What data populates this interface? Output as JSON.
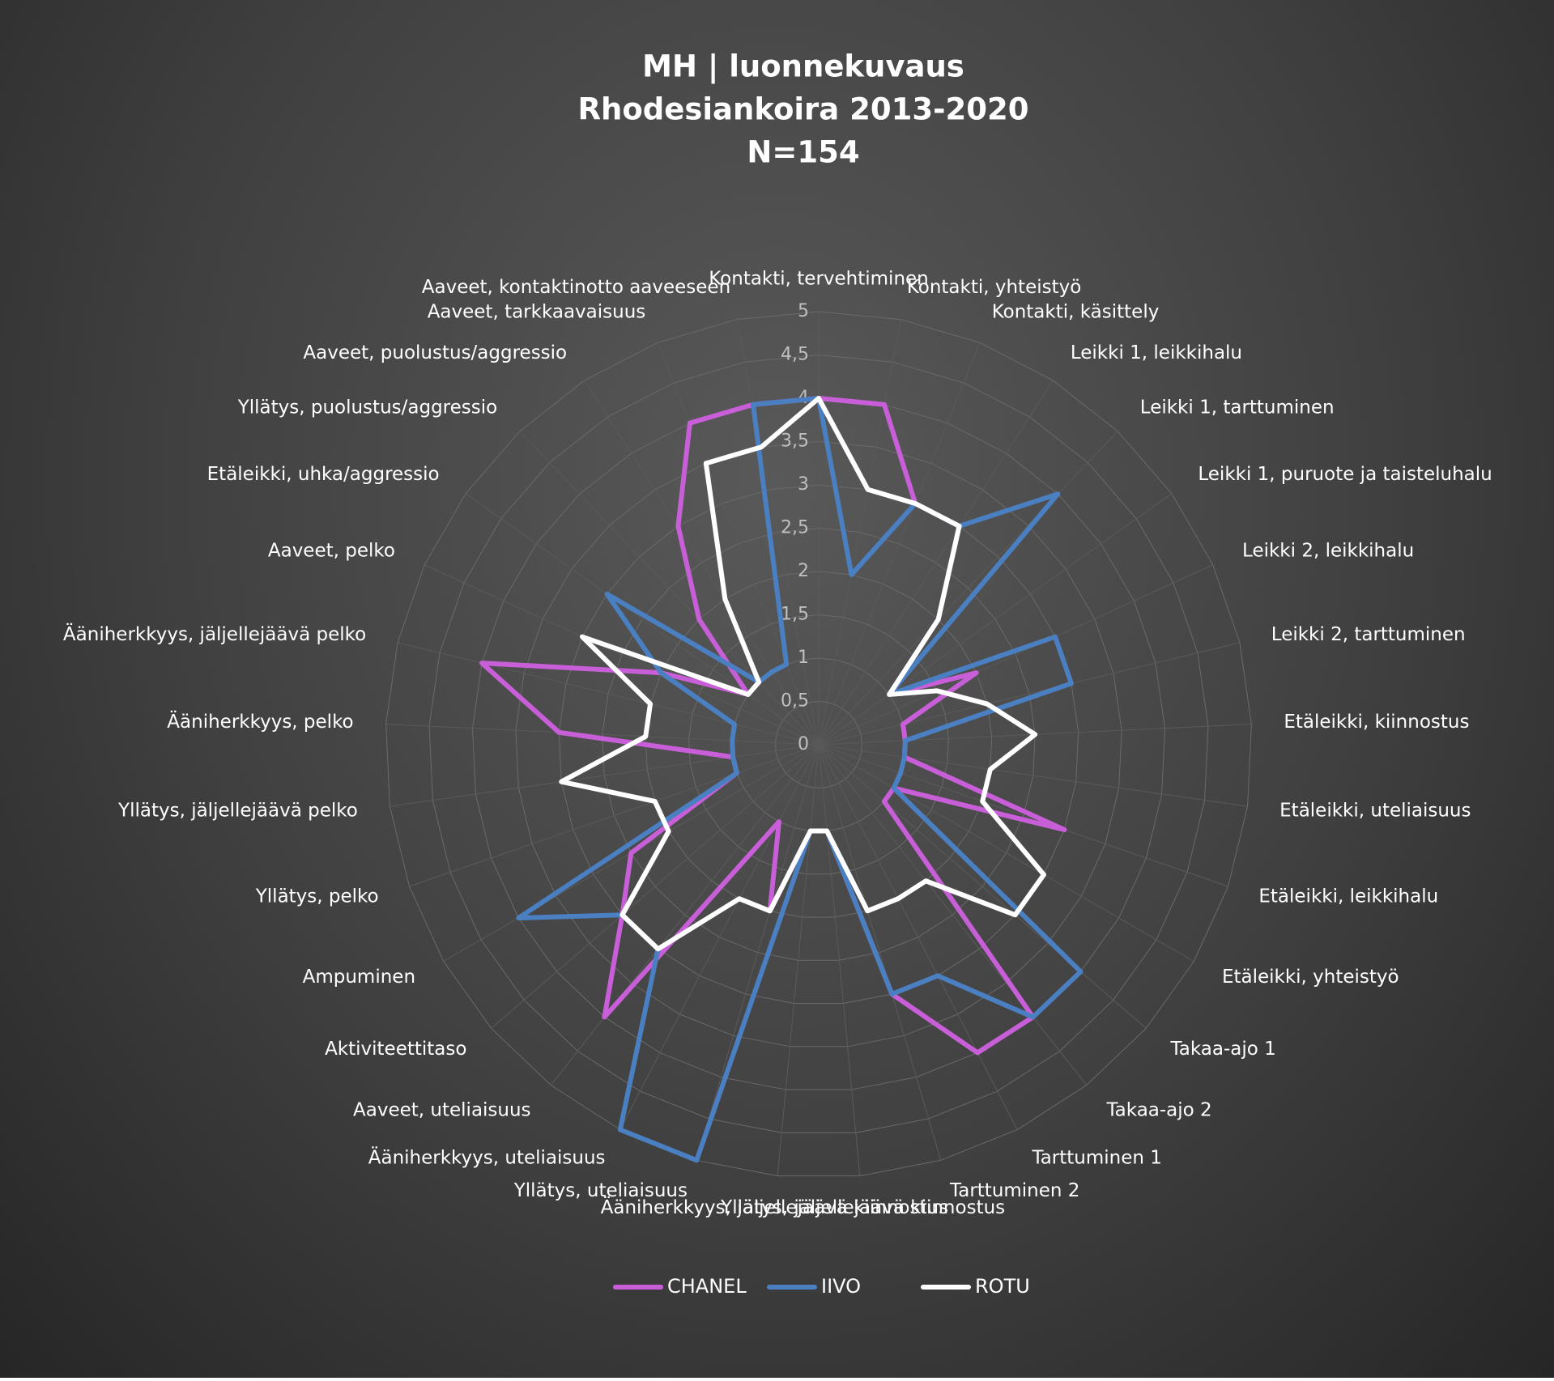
{
  "chart_data": {
    "type": "radar",
    "title": [
      "MH | luonnekuvaus",
      "Rhodesiankoira 2013-2020",
      "N=154"
    ],
    "categories": [
      "Kontakti, tervehtiminen",
      "Kontakti, yhteistyö",
      "Kontakti, käsittely",
      "Leikki 1, leikkihalu",
      "Leikki 1, tarttuminen",
      "Leikki 1, puruote ja taisteluhalu",
      "Leikki 2, leikkihalu",
      "Leikki 2, tarttuminen",
      "Etäleikki, kiinnostus",
      "Etäleikki, uteliaisuus",
      "Etäleikki, leikkihalu",
      "Etäleikki, yhteistyö",
      "Takaa-ajo 1",
      "Takaa-ajo 2",
      "Tarttuminen 1",
      "Tarttuminen 2",
      "Yllätys, jäljellejäävä kiinnostus",
      "Ääniherkkyys, jäljellejäävä kiinnostus",
      "Yllätys, uteliaisuus",
      "Ääniherkkyys, uteliaisuus",
      "Aaveet, uteliaisuus",
      "Aktiviteettitaso",
      "Ampuminen",
      "Yllätys, pelko",
      "Yllätys, jäljellejäävä pelko",
      "Ääniherkkyys, pelko",
      "Ääniherkkyys, jäljellejäävä pelko",
      "Aaveet, pelko",
      "Etäleikki, uhka/aggressio",
      "Yllätys, puolustus/aggressio",
      "Aaveet, puolustus/aggressio",
      "Aaveet, tarkkaavaisuus",
      "Aaveet, kontaktinotto aaveeseen"
    ],
    "series": [
      {
        "name": "CHANEL",
        "color": "#c85fd8",
        "values": [
          4,
          4,
          3,
          3,
          2,
          1,
          2,
          1,
          1,
          1,
          3,
          1,
          1,
          4,
          4,
          3,
          1,
          1,
          2,
          1,
          4,
          3,
          2.5,
          1,
          1,
          3,
          4,
          2,
          1,
          2,
          3,
          4,
          4
        ]
      },
      {
        "name": "IIVO",
        "color": "#4a7fc1",
        "values": [
          4,
          2,
          3,
          3,
          4,
          1,
          3,
          3,
          1,
          1,
          1,
          1,
          4,
          4,
          3,
          3,
          1,
          1,
          5,
          5,
          3,
          3,
          4,
          1,
          1,
          1,
          1,
          2,
          3,
          1,
          1,
          1,
          4
        ]
      },
      {
        "name": "ROTU",
        "color": "#ffffff",
        "values": [
          4,
          3,
          3,
          3,
          2,
          1,
          1.5,
          2,
          2.5,
          2,
          2,
          3,
          3,
          2,
          2,
          2,
          1,
          1,
          2,
          2,
          3,
          3,
          2,
          2,
          3,
          2,
          2,
          3,
          1,
          1,
          2,
          3.5,
          3.5
        ]
      }
    ],
    "ylim": [
      0,
      5
    ],
    "yticks": [
      0,
      {
        "value": 0.5,
        "label": "0,5"
      },
      1,
      {
        "value": 1.5,
        "label": "1,5"
      },
      2,
      {
        "value": 2.5,
        "label": "2,5"
      },
      3,
      {
        "value": 3.5,
        "label": "3,5"
      },
      4,
      {
        "value": 4.5,
        "label": "4,5"
      },
      5
    ],
    "grid": true,
    "legend": "bottom"
  }
}
